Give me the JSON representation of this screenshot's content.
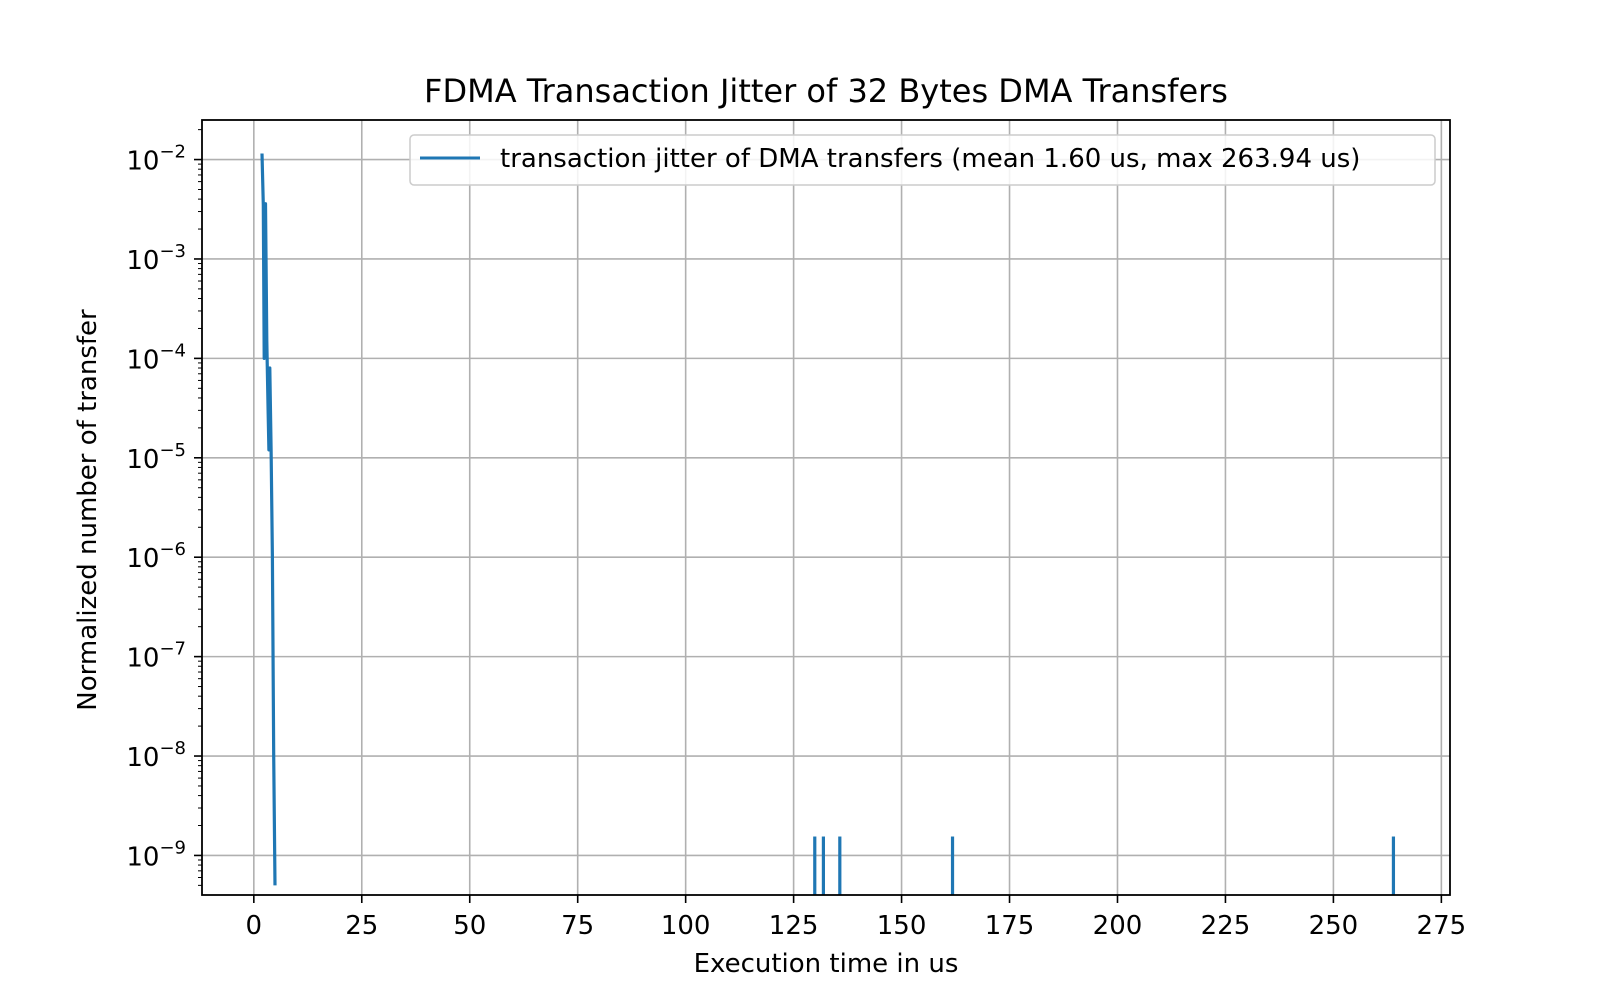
{
  "chart_data": {
    "type": "line",
    "title": "FDMA Transaction Jitter of 32 Bytes DMA Transfers",
    "xlabel": "Execution time in us",
    "ylabel": "Normalized number of transfer",
    "xlim": [
      -12,
      277
    ],
    "ylim": [
      4e-10,
      0.025
    ],
    "yscale": "log",
    "grid": true,
    "legend_position": "top-right",
    "xticks": [
      0,
      25,
      50,
      75,
      100,
      125,
      150,
      175,
      200,
      225,
      250,
      275
    ],
    "xtick_labels": [
      "0",
      "25",
      "50",
      "75",
      "100",
      "125",
      "150",
      "175",
      "200",
      "225",
      "250",
      "275"
    ],
    "yticks": [
      1e-09,
      1e-08,
      1e-07,
      1e-06,
      1e-05,
      0.0001,
      0.001,
      0.01
    ],
    "ytick_labels": [
      {
        "base": "10",
        "exp": "−9"
      },
      {
        "base": "10",
        "exp": "−8"
      },
      {
        "base": "10",
        "exp": "−7"
      },
      {
        "base": "10",
        "exp": "−6"
      },
      {
        "base": "10",
        "exp": "−5"
      },
      {
        "base": "10",
        "exp": "−4"
      },
      {
        "base": "10",
        "exp": "−3"
      },
      {
        "base": "10",
        "exp": "−2"
      }
    ],
    "series": [
      {
        "name": "transaction jitter of DMA transfers (mean 1.60 us, max 263.94 us)",
        "color": "#1f77b4",
        "points": [
          [
            1.9,
            0.0115
          ],
          [
            2.2,
            0.0035
          ],
          [
            2.4,
            0.0001
          ],
          [
            2.7,
            0.0036
          ],
          [
            3.0,
            0.00015
          ],
          [
            3.3,
            3e-05
          ],
          [
            3.5,
            1.2e-05
          ],
          [
            3.7,
            8e-05
          ],
          [
            4.0,
            1.2e-05
          ],
          [
            4.3,
            1e-06
          ],
          [
            4.6,
            1e-08
          ],
          [
            4.9,
            5e-10
          ]
        ],
        "spikes": [
          {
            "x": 129.9,
            "y": 1.55e-09
          },
          {
            "x": 131.9,
            "y": 1.55e-09
          },
          {
            "x": 135.7,
            "y": 1.55e-09
          },
          {
            "x": 161.8,
            "y": 1.55e-09
          },
          {
            "x": 263.9,
            "y": 1.55e-09
          }
        ]
      }
    ]
  }
}
